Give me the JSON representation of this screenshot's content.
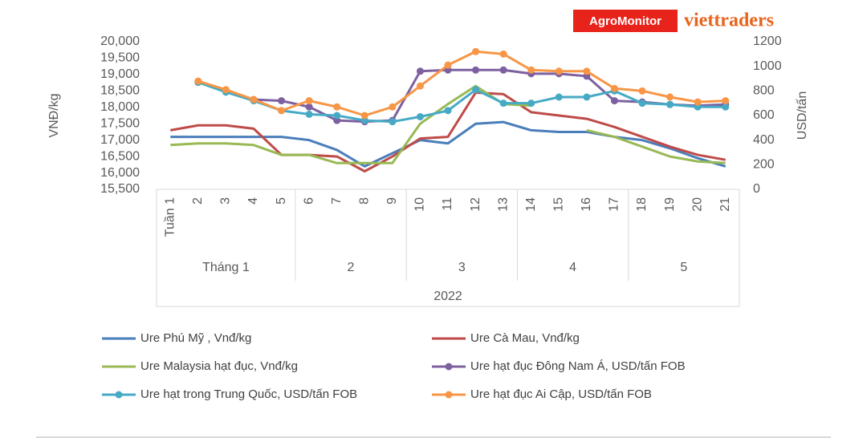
{
  "brand": {
    "left": "AgroMonitor",
    "right": "viettraders"
  },
  "chart_data": {
    "type": "line",
    "ylabel": "VNĐ/kg",
    "y2label": "USD/tấn",
    "xlabel": "2022",
    "groups": [
      {
        "label": "Tháng 1",
        "categories": [
          "Tuần 1",
          "2",
          "3",
          "4",
          "5"
        ]
      },
      {
        "label": "2",
        "categories": [
          "6",
          "7",
          "8",
          "9"
        ]
      },
      {
        "label": "3",
        "categories": [
          "10",
          "11",
          "12",
          "13"
        ]
      },
      {
        "label": "4",
        "categories": [
          "14",
          "15",
          "16",
          "17"
        ]
      },
      {
        "label": "5",
        "categories": [
          "18",
          "19",
          "20",
          "21"
        ]
      }
    ],
    "ylim": [
      15500,
      20000
    ],
    "yticks": [
      {
        "value": 15500,
        "label": "15,500"
      },
      {
        "value": 16000,
        "label": "16,000"
      },
      {
        "value": 16500,
        "label": "16,500"
      },
      {
        "value": 17000,
        "label": "17,000"
      },
      {
        "value": 17500,
        "label": "17,500"
      },
      {
        "value": 18000,
        "label": "18,000"
      },
      {
        "value": 18500,
        "label": "18,500"
      },
      {
        "value": 19000,
        "label": "19,000"
      },
      {
        "value": 19500,
        "label": "19,500"
      },
      {
        "value": 20000,
        "label": "20,000"
      }
    ],
    "y2lim": [
      0,
      1200
    ],
    "y2ticks": [
      0,
      200,
      400,
      600,
      800,
      1000,
      1200
    ],
    "series": [
      {
        "name": "Ure Phú Mỹ  , Vnđ/kg",
        "color": "#4a7ebb",
        "marker": false,
        "values": [
          17100,
          17100,
          17100,
          17100,
          17100,
          17000,
          16700,
          16200,
          16600,
          17000,
          16900,
          17500,
          17550,
          17300,
          17250,
          17250,
          17100,
          17000,
          16750,
          16450,
          16200
        ]
      },
      {
        "name": "Ure Cà Mau, Vnđ/kg",
        "color": "#be4b48",
        "marker": false,
        "values": [
          17300,
          17450,
          17450,
          17350,
          16550,
          16550,
          16500,
          16050,
          16500,
          17050,
          17100,
          18450,
          18400,
          17850,
          17750,
          17650,
          17400,
          17100,
          16800,
          16550,
          16400
        ]
      },
      {
        "name": "Ure Malaysia hạt đục, Vnđ/kg",
        "color": "#98b954",
        "marker": false,
        "values": [
          16850,
          16900,
          16900,
          16850,
          16550,
          16550,
          16300,
          16300,
          16300,
          17500,
          18100,
          18650,
          18100,
          18050,
          null,
          17300,
          17100,
          16800,
          16500,
          16350,
          16300
        ]
      },
      {
        "name": "Ure hạt đục Đông Nam Á,  USD/tấn FOB",
        "color": "#7d60a0",
        "marker": true,
        "axis": "y2",
        "values": [
          null,
          870,
          800,
          730,
          720,
          670,
          560,
          550,
          560,
          960,
          970,
          970,
          970,
          940,
          940,
          920,
          720,
          710,
          690,
          680,
          690
        ]
      },
      {
        "name": "Ure hạt trong Trung Quốc, USD/tấn FOB",
        "color": "#46aac5",
        "marker": true,
        "axis": "y2",
        "values": [
          null,
          870,
          790,
          720,
          640,
          610,
          600,
          560,
          550,
          590,
          640,
          810,
          700,
          700,
          750,
          750,
          800,
          700,
          690,
          670,
          670
        ]
      },
      {
        "name": "Ure hạt đục Ai Cập, USD/tấn FOB",
        "color": "#f79646",
        "marker": true,
        "axis": "y2",
        "values": [
          null,
          880,
          810,
          730,
          640,
          720,
          670,
          600,
          670,
          840,
          1010,
          1120,
          1100,
          970,
          960,
          960,
          820,
          800,
          750,
          710,
          720
        ]
      }
    ]
  }
}
